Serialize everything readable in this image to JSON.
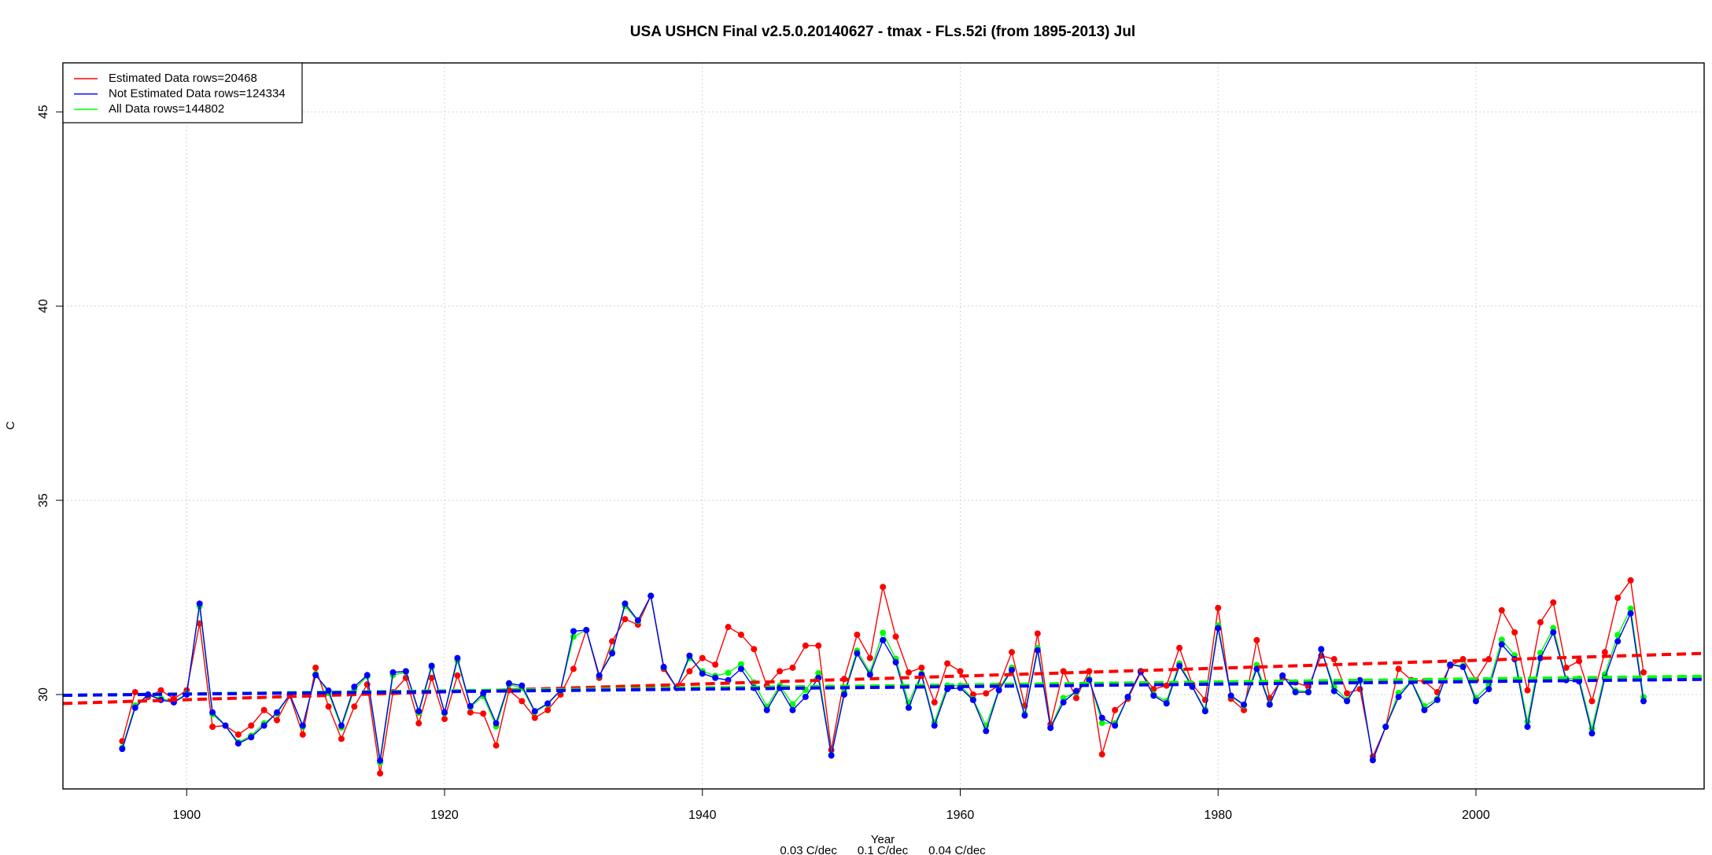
{
  "chart_data": {
    "type": "line",
    "title": "USA USHCN Final v2.5.0.20140627 - tmax - FLs.52i (from 1895-2013) Jul",
    "x_label": "Year",
    "y_label": "C",
    "xlim": [
      1890.4,
      2017.7
    ],
    "ylim": [
      27.57,
      46.26
    ],
    "xticks": [
      1900,
      1920,
      1940,
      1960,
      1980,
      2000
    ],
    "yticks": [
      30,
      35,
      40,
      45
    ],
    "grid": true,
    "legend": "top-left",
    "x": [
      1895,
      1896,
      1897,
      1898,
      1899,
      1900,
      1901,
      1902,
      1903,
      1904,
      1905,
      1906,
      1907,
      1908,
      1909,
      1910,
      1911,
      1912,
      1913,
      1914,
      1915,
      1916,
      1917,
      1918,
      1919,
      1920,
      1921,
      1922,
      1923,
      1924,
      1925,
      1926,
      1927,
      1928,
      1929,
      1930,
      1931,
      1932,
      1933,
      1934,
      1935,
      1936,
      1937,
      1938,
      1939,
      1940,
      1941,
      1942,
      1943,
      1944,
      1945,
      1946,
      1947,
      1948,
      1949,
      1950,
      1951,
      1952,
      1953,
      1954,
      1955,
      1956,
      1957,
      1958,
      1959,
      1960,
      1961,
      1962,
      1963,
      1964,
      1965,
      1966,
      1967,
      1968,
      1969,
      1970,
      1971,
      1972,
      1973,
      1974,
      1975,
      1976,
      1977,
      1978,
      1979,
      1980,
      1981,
      1982,
      1983,
      1984,
      1985,
      1986,
      1987,
      1988,
      1989,
      1990,
      1991,
      1992,
      1993,
      1994,
      1995,
      1996,
      1997,
      1998,
      1999,
      2000,
      2001,
      2002,
      2003,
      2004,
      2005,
      2006,
      2007,
      2008,
      2009,
      2010,
      2011,
      2012,
      2013
    ],
    "series": [
      {
        "name": "Estimated Data rows=20468",
        "color": "#ff0000",
        "values": [
          28.8,
          30.06,
          29.94,
          30.11,
          29.89,
          30.11,
          31.83,
          29.17,
          29.2,
          28.97,
          29.2,
          29.6,
          29.34,
          29.97,
          28.97,
          30.69,
          29.69,
          28.86,
          29.69,
          30.26,
          27.97,
          30.06,
          30.43,
          29.26,
          30.43,
          29.37,
          30.49,
          29.54,
          29.51,
          28.69,
          30.11,
          29.83,
          29.4,
          29.6,
          30.0,
          30.66,
          31.66,
          30.43,
          31.37,
          31.94,
          31.8,
          32.54,
          30.66,
          30.17,
          30.6,
          30.94,
          30.77,
          31.74,
          31.54,
          31.17,
          30.23,
          30.6,
          30.69,
          31.26,
          31.26,
          28.57,
          30.4,
          31.54,
          30.94,
          32.77,
          31.49,
          30.57,
          30.69,
          29.8,
          30.8,
          30.6,
          30.0,
          30.03,
          30.23,
          31.09,
          29.71,
          31.57,
          29.23,
          30.6,
          29.91,
          30.6,
          28.46,
          29.6,
          29.89,
          30.57,
          30.14,
          30.23,
          31.2,
          30.26,
          29.86,
          32.23,
          29.89,
          29.6,
          31.4,
          29.91,
          30.43,
          30.31,
          30.2,
          31.0,
          30.91,
          30.03,
          30.14,
          28.4,
          29.17,
          30.66,
          30.37,
          30.34,
          30.06,
          30.74,
          30.91,
          30.37,
          30.91,
          32.17,
          31.6,
          30.11,
          31.86,
          32.37,
          30.69,
          30.86,
          29.83,
          31.09,
          32.49,
          32.94,
          30.57
        ]
      },
      {
        "name": "Not Estimated Data rows=124334",
        "color": "#0000ff",
        "values": [
          28.6,
          29.66,
          30.0,
          29.86,
          29.8,
          30.0,
          32.34,
          29.54,
          29.2,
          28.74,
          28.9,
          29.2,
          29.54,
          30.0,
          29.2,
          30.5,
          30.1,
          29.2,
          30.2,
          30.5,
          28.3,
          30.57,
          30.6,
          29.57,
          30.74,
          29.54,
          30.94,
          29.7,
          30.03,
          29.26,
          30.29,
          30.23,
          29.57,
          29.77,
          30.11,
          31.63,
          31.66,
          30.49,
          31.06,
          32.34,
          31.91,
          32.54,
          30.71,
          30.17,
          31.0,
          30.54,
          30.43,
          30.37,
          30.66,
          30.17,
          29.6,
          30.17,
          29.6,
          29.94,
          30.43,
          28.43,
          30.0,
          31.06,
          30.51,
          31.4,
          30.83,
          29.66,
          30.51,
          29.2,
          30.14,
          30.17,
          29.86,
          29.06,
          30.11,
          30.63,
          29.46,
          31.14,
          29.14,
          29.8,
          30.09,
          30.37,
          29.4,
          29.2,
          29.94,
          30.6,
          29.97,
          29.77,
          30.74,
          30.2,
          29.57,
          31.71,
          29.97,
          29.74,
          30.66,
          29.74,
          30.49,
          30.06,
          30.06,
          31.17,
          30.09,
          29.83,
          30.37,
          28.31,
          29.17,
          29.94,
          30.34,
          29.6,
          29.86,
          30.77,
          30.71,
          29.83,
          30.14,
          31.29,
          30.91,
          29.17,
          30.94,
          31.6,
          30.37,
          30.34,
          29.0,
          30.43,
          31.37,
          32.09,
          29.83
        ]
      },
      {
        "name": "All Data rows=144802",
        "color": "#00ff00",
        "values": [
          28.63,
          29.72,
          29.99,
          29.9,
          29.81,
          30.02,
          32.27,
          29.49,
          29.2,
          28.77,
          28.94,
          29.26,
          29.51,
          30.0,
          29.17,
          30.53,
          30.04,
          29.15,
          30.13,
          30.47,
          28.25,
          30.5,
          30.58,
          29.53,
          30.7,
          29.52,
          30.88,
          29.68,
          29.96,
          29.18,
          30.26,
          30.17,
          29.55,
          29.75,
          30.1,
          31.49,
          31.66,
          30.48,
          31.1,
          32.28,
          31.89,
          32.54,
          30.7,
          30.17,
          30.94,
          30.6,
          30.48,
          30.56,
          30.78,
          30.31,
          29.69,
          30.23,
          29.75,
          30.12,
          30.55,
          28.45,
          30.06,
          31.13,
          30.57,
          31.59,
          30.92,
          29.79,
          30.54,
          29.28,
          30.23,
          30.23,
          29.88,
          29.2,
          30.13,
          30.69,
          29.5,
          31.2,
          29.15,
          29.91,
          30.06,
          30.4,
          29.27,
          29.26,
          29.93,
          30.6,
          30.0,
          29.83,
          30.8,
          30.21,
          29.61,
          31.78,
          29.96,
          29.72,
          30.76,
          29.76,
          30.48,
          30.1,
          30.08,
          31.15,
          30.2,
          29.86,
          30.34,
          28.32,
          29.17,
          30.04,
          30.34,
          29.7,
          29.89,
          30.77,
          30.74,
          29.91,
          30.25,
          31.41,
          31.01,
          29.3,
          31.07,
          31.71,
          30.41,
          30.41,
          29.12,
          30.52,
          31.53,
          32.21,
          29.93
        ]
      }
    ],
    "draw_order": [
      0,
      2,
      1
    ],
    "trend_lines": [
      {
        "color": "#ff0000",
        "x": [
          1890.4,
          2017.7
        ],
        "values": [
          29.77,
          31.06
        ]
      },
      {
        "color": "#00ff00",
        "x": [
          1890.4,
          2017.7
        ],
        "values": [
          29.98,
          30.47
        ]
      },
      {
        "color": "#0000ff",
        "x": [
          1890.4,
          2017.7
        ],
        "values": [
          29.98,
          30.39
        ]
      }
    ],
    "trend_labels": [
      {
        "text": "0.03 C/dec",
        "color": "#0000ff"
      },
      {
        "text": "0.1 C/dec",
        "color": "#ff0000"
      },
      {
        "text": "0.04 C/dec",
        "color": "#00ff00"
      }
    ]
  }
}
